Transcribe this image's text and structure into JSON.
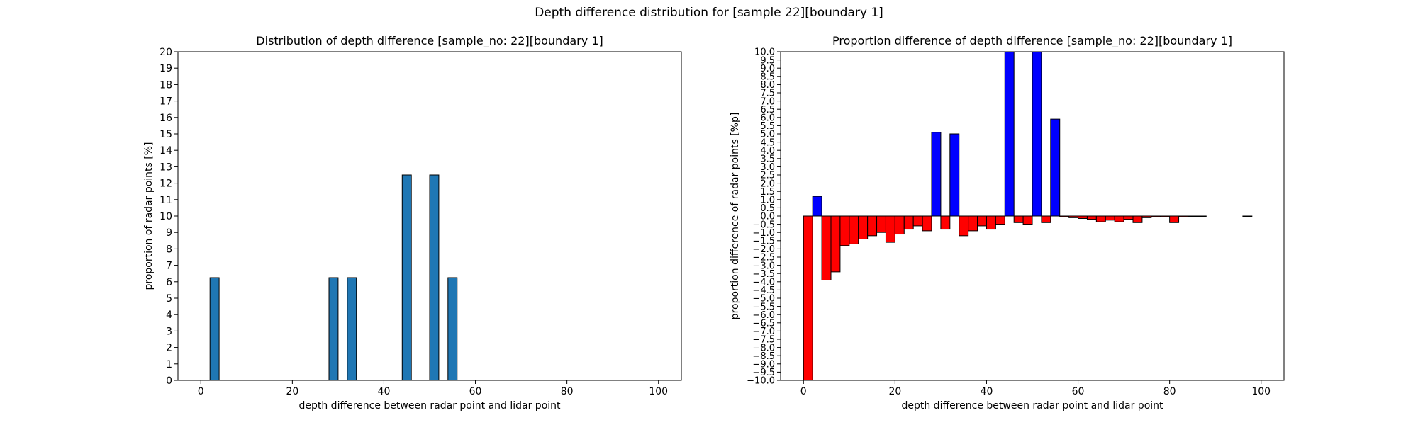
{
  "figure": {
    "suptitle": "Depth difference distribution for [sample 22][boundary 1]"
  },
  "chart_data": [
    {
      "type": "bar",
      "title": "Distribution of depth difference [sample_no: 22][boundary 1]",
      "xlabel": "depth difference between radar point and lidar point",
      "ylabel": "proportion of radar points [%]",
      "xlim": [
        -5,
        105
      ],
      "ylim": [
        0,
        20
      ],
      "xticks": [
        0,
        20,
        40,
        60,
        80,
        100
      ],
      "yticks": [
        0,
        1,
        2,
        3,
        4,
        5,
        6,
        7,
        8,
        9,
        10,
        11,
        12,
        13,
        14,
        15,
        16,
        17,
        18,
        19,
        20
      ],
      "bar_width": 2,
      "bar_color": "#1f77b4",
      "edge_color": "#000000",
      "grid": false,
      "x": [
        3,
        29,
        33,
        45,
        51,
        55
      ],
      "values": [
        6.25,
        6.25,
        6.25,
        12.5,
        12.5,
        6.25
      ]
    },
    {
      "type": "bar",
      "title": "Proportion difference of depth difference [sample_no: 22][boundary 1]",
      "xlabel": "depth difference between radar point and lidar point",
      "ylabel": "proportion difference of radar points [%p]",
      "xlim": [
        -5,
        105
      ],
      "ylim": [
        -10,
        10
      ],
      "xticks": [
        0,
        20,
        40,
        60,
        80,
        100
      ],
      "yticks": [
        -10,
        -9.5,
        -9,
        -8.5,
        -8,
        -7.5,
        -7,
        -6.5,
        -6,
        -5.5,
        -5,
        -4.5,
        -4,
        -3.5,
        -3,
        -2.5,
        -2,
        -1.5,
        -1,
        -0.5,
        0,
        0.5,
        1,
        1.5,
        2,
        2.5,
        3,
        3.5,
        4,
        4.5,
        5,
        5.5,
        6,
        6.5,
        7,
        7.5,
        8,
        8.5,
        9,
        9.5,
        10
      ],
      "bar_width": 2,
      "positive_color": "#0000ff",
      "negative_color": "#ff0000",
      "edge_color": "#000000",
      "grid": false,
      "x": [
        1,
        3,
        5,
        7,
        9,
        11,
        13,
        15,
        17,
        19,
        21,
        23,
        25,
        27,
        29,
        31,
        33,
        35,
        37,
        39,
        41,
        43,
        45,
        47,
        49,
        51,
        53,
        55,
        57,
        59,
        61,
        63,
        65,
        67,
        69,
        71,
        73,
        75,
        77,
        79,
        81,
        83,
        85,
        87,
        89,
        91,
        93,
        95,
        97,
        99
      ],
      "values": [
        -10.5,
        1.2,
        -3.9,
        -3.4,
        -1.8,
        -1.7,
        -1.4,
        -1.2,
        -1.0,
        -1.6,
        -1.1,
        -0.8,
        -0.6,
        -0.9,
        5.1,
        -0.8,
        5.0,
        -1.2,
        -0.9,
        -0.6,
        -0.8,
        -0.5,
        10.5,
        -0.4,
        -0.5,
        10.5,
        -0.4,
        5.9,
        -0.05,
        -0.1,
        -0.15,
        -0.2,
        -0.35,
        -0.25,
        -0.35,
        -0.2,
        -0.4,
        -0.1,
        -0.05,
        -0.05,
        -0.4,
        -0.05,
        -0.03,
        -0.03,
        0.0,
        0.0,
        0.0,
        0.0,
        -0.03,
        0.0
      ]
    }
  ]
}
